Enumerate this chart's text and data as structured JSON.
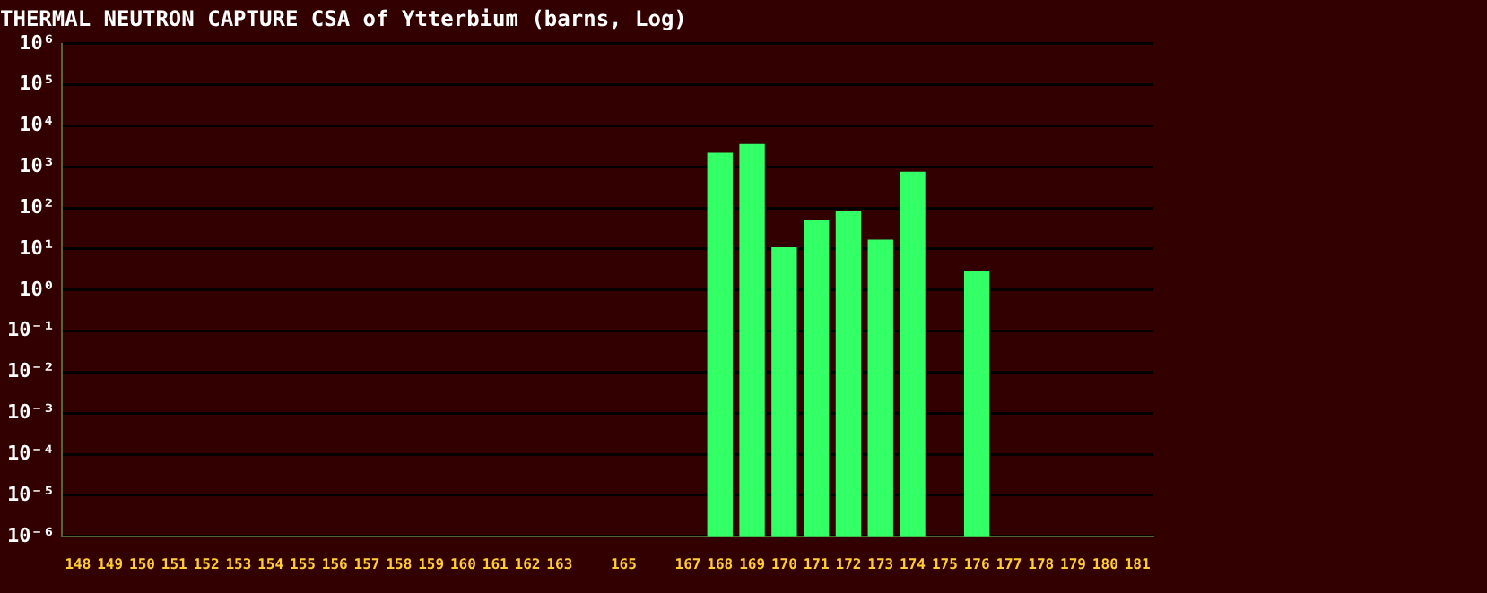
{
  "chart_data": {
    "type": "bar",
    "title": "THERMAL NEUTRON CAPTURE CSA of Ytterbium (barns, Log)",
    "categories": [
      "148",
      "149",
      "150",
      "151",
      "152",
      "153",
      "154",
      "155",
      "156",
      "157",
      "158",
      "159",
      "160",
      "161",
      "162",
      "163",
      null,
      "165",
      null,
      "167",
      "168",
      "169",
      "170",
      "171",
      "172",
      "173",
      "174",
      "175",
      "176",
      "177",
      "178",
      "179",
      "180",
      "181"
    ],
    "values": [
      null,
      null,
      null,
      null,
      null,
      null,
      null,
      null,
      null,
      null,
      null,
      null,
      null,
      null,
      null,
      null,
      null,
      null,
      null,
      null,
      2200,
      3600,
      11,
      50,
      84,
      17,
      760,
      null,
      3,
      null,
      null,
      null,
      null,
      null
    ],
    "color": "#33ff66",
    "log": true,
    "ylim": [
      1e-06,
      1000000
    ],
    "yticks": [
      {
        "value": 1e-06,
        "label": "10⁻⁶"
      },
      {
        "value": 1e-05,
        "label": "10⁻⁵"
      },
      {
        "value": 0.0001,
        "label": "10⁻⁴"
      },
      {
        "value": 0.001,
        "label": "10⁻³"
      },
      {
        "value": 0.01,
        "label": "10⁻²"
      },
      {
        "value": 0.1,
        "label": "10⁻¹"
      },
      {
        "value": 1,
        "label": "10⁰"
      },
      {
        "value": 10,
        "label": "10¹"
      },
      {
        "value": 100,
        "label": "10²"
      },
      {
        "value": 1000,
        "label": "10³"
      },
      {
        "value": 10000,
        "label": "10⁴"
      },
      {
        "value": 100000,
        "label": "10⁵"
      },
      {
        "value": 1000000,
        "label": "10⁶"
      }
    ],
    "grid": "y",
    "legend": false
  }
}
